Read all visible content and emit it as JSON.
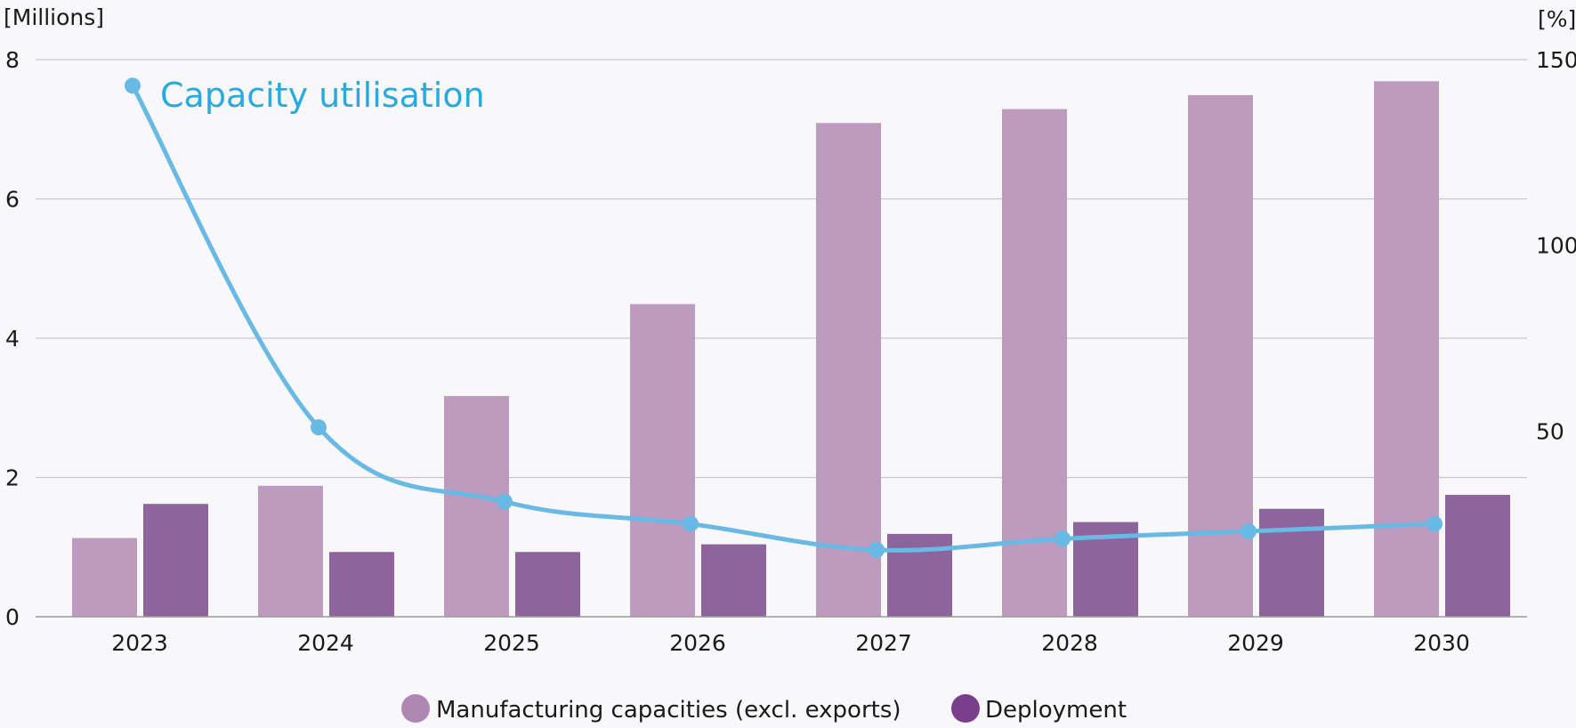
{
  "chart_data": {
    "type": "bar",
    "categories": [
      "2023",
      "2024",
      "2025",
      "2026",
      "2027",
      "2028",
      "2029",
      "2030"
    ],
    "series": [
      {
        "name": "Manufacturing capacities (excl. exports)",
        "type": "bar",
        "axis": "left",
        "color": "#bc9bbf",
        "values": [
          1.13,
          1.88,
          3.17,
          4.49,
          7.09,
          7.29,
          7.49,
          7.69
        ]
      },
      {
        "name": "Deployment",
        "type": "bar",
        "axis": "left",
        "color": "#8e649c",
        "values": [
          1.62,
          0.93,
          0.93,
          1.04,
          1.19,
          1.36,
          1.55,
          1.75
        ]
      },
      {
        "name": "Capacity utilisation",
        "type": "line",
        "axis": "right",
        "color": "#68b9e3",
        "values": [
          143,
          51,
          31,
          25,
          18,
          21,
          23,
          25
        ]
      }
    ],
    "y_left": {
      "unit_label": "[Millions]",
      "ylim": [
        0,
        8
      ],
      "ticks": [
        "0",
        "2",
        "4",
        "6",
        "8"
      ]
    },
    "y_right": {
      "unit_label": "[%]",
      "ylim": [
        0,
        150
      ],
      "ticks": [
        "50",
        "100",
        "150"
      ]
    },
    "grid": true,
    "line_label": "Capacity utilisation",
    "legend": {
      "placement": "bottom",
      "items": [
        {
          "label": "Manufacturing capacities (excl. exports)",
          "color": "#ae88b3"
        },
        {
          "label": "Deployment",
          "color": "#7a3f8c"
        }
      ]
    }
  }
}
